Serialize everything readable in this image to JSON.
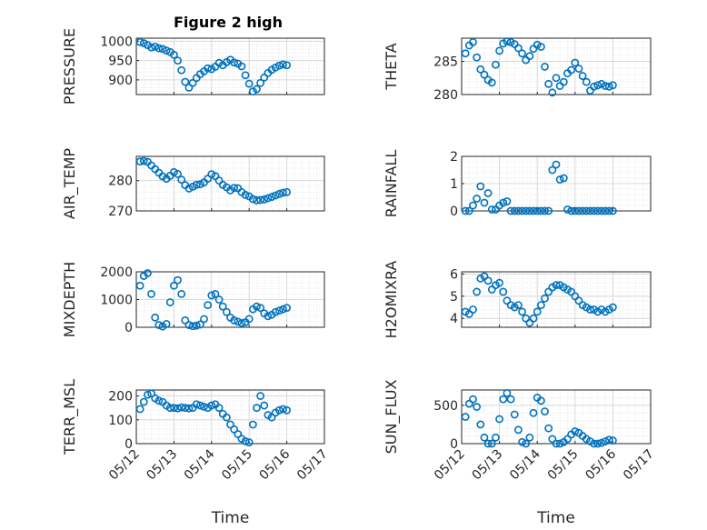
{
  "figure": {
    "title": "Figure 2 high",
    "marker_color": "#0072bd"
  },
  "chart_data": [
    {
      "type": "scatter",
      "ylabel": "PRESSURE",
      "ylim": [
        862,
        1008
      ],
      "yticks": [
        "1000",
        "950",
        "900"
      ],
      "ytick_values": [
        1000,
        950,
        900
      ],
      "x_ticks": [
        "05/12",
        "05/13",
        "05/14",
        "05/15",
        "05/16",
        "05/17"
      ],
      "x_tick_labels_visible": false,
      "grid": true,
      "series": [
        {
          "x": [
            0.1,
            0.2,
            0.3,
            0.4,
            0.5,
            0.6,
            0.7,
            0.8,
            0.9,
            1.0,
            1.1,
            1.2,
            1.3,
            1.4,
            1.5,
            1.6,
            1.7,
            1.8,
            1.9,
            2.0,
            2.1,
            2.2,
            2.3,
            2.4,
            2.5,
            2.6,
            2.7,
            2.8,
            2.9,
            3.0,
            3.1,
            3.2,
            3.3,
            3.4,
            3.5,
            3.6,
            3.7,
            3.8,
            3.9,
            4.0
          ],
          "y": [
            998,
            995,
            990,
            984,
            986,
            982,
            980,
            976,
            972,
            965,
            950,
            925,
            895,
            880,
            892,
            905,
            915,
            922,
            930,
            928,
            934,
            944,
            938,
            946,
            952,
            945,
            942,
            935,
            912,
            890,
            870,
            876,
            892,
            906,
            918,
            926,
            932,
            937,
            940,
            938
          ]
        }
      ]
    },
    {
      "type": "scatter",
      "ylabel": "THETA",
      "ylim": [
        280,
        288.5
      ],
      "yticks": [
        "285",
        "280"
      ],
      "ytick_values": [
        285,
        280
      ],
      "x_ticks": [
        "05/12",
        "05/13",
        "05/14",
        "05/15",
        "05/16",
        "05/17"
      ],
      "x_tick_labels_visible": false,
      "grid": true,
      "series": [
        {
          "x": [
            0.1,
            0.2,
            0.3,
            0.4,
            0.5,
            0.6,
            0.7,
            0.8,
            0.9,
            1.0,
            1.1,
            1.2,
            1.3,
            1.4,
            1.5,
            1.6,
            1.7,
            1.8,
            1.9,
            2.0,
            2.1,
            2.2,
            2.3,
            2.4,
            2.5,
            2.6,
            2.7,
            2.8,
            2.9,
            3.0,
            3.1,
            3.2,
            3.3,
            3.4,
            3.5,
            3.6,
            3.7,
            3.8,
            3.9,
            4.0
          ],
          "y": [
            286.2,
            287.4,
            287.9,
            285.6,
            283.8,
            283.0,
            282.2,
            281.8,
            284.5,
            286.6,
            287.7,
            288.0,
            287.9,
            287.6,
            287.0,
            286.2,
            285.2,
            285.8,
            286.9,
            287.5,
            287.2,
            284.2,
            281.6,
            280.3,
            282.5,
            281.3,
            281.9,
            283.2,
            283.7,
            284.8,
            283.9,
            282.8,
            281.9,
            280.6,
            281.2,
            281.4,
            281.6,
            281.3,
            281.2,
            281.4
          ]
        }
      ]
    },
    {
      "type": "scatter",
      "ylabel": "AIR_TEMP",
      "ylim": [
        270,
        288
      ],
      "yticks": [
        "280",
        "270"
      ],
      "ytick_values": [
        280,
        270
      ],
      "x_ticks": [
        "05/12",
        "05/13",
        "05/14",
        "05/15",
        "05/16",
        "05/17"
      ],
      "x_tick_labels_visible": false,
      "grid": true,
      "series": [
        {
          "x": [
            0.1,
            0.2,
            0.3,
            0.4,
            0.5,
            0.6,
            0.7,
            0.8,
            0.9,
            1.0,
            1.1,
            1.2,
            1.3,
            1.4,
            1.5,
            1.6,
            1.7,
            1.8,
            1.9,
            2.0,
            2.1,
            2.2,
            2.3,
            2.4,
            2.5,
            2.6,
            2.7,
            2.8,
            2.9,
            3.0,
            3.1,
            3.2,
            3.3,
            3.4,
            3.5,
            3.6,
            3.7,
            3.8,
            3.9,
            4.0
          ],
          "y": [
            286.3,
            286.5,
            286.2,
            285.0,
            283.8,
            282.6,
            281.4,
            280.6,
            281.6,
            282.8,
            282.2,
            280.3,
            278.5,
            277.4,
            278.0,
            278.6,
            278.8,
            279.4,
            280.6,
            282.1,
            281.5,
            280.0,
            278.6,
            277.8,
            276.8,
            277.6,
            277.5,
            276.2,
            275.3,
            274.8,
            273.9,
            273.5,
            273.6,
            273.8,
            274.2,
            274.6,
            275.1,
            275.6,
            276.0,
            276.2
          ]
        }
      ]
    },
    {
      "type": "scatter",
      "ylabel": "RAINFALL",
      "ylim": [
        0,
        2
      ],
      "yticks": [
        "2",
        "1",
        "0"
      ],
      "ytick_values": [
        2,
        1,
        0
      ],
      "x_ticks": [
        "05/12",
        "05/13",
        "05/14",
        "05/15",
        "05/16",
        "05/17"
      ],
      "x_tick_labels_visible": false,
      "grid": true,
      "series": [
        {
          "x": [
            0.1,
            0.2,
            0.3,
            0.4,
            0.5,
            0.6,
            0.7,
            0.8,
            0.9,
            1.0,
            1.1,
            1.2,
            1.3,
            1.4,
            1.5,
            1.6,
            1.7,
            1.8,
            1.9,
            2.0,
            2.1,
            2.2,
            2.3,
            2.4,
            2.5,
            2.6,
            2.7,
            2.8,
            2.9,
            3.0,
            3.1,
            3.2,
            3.3,
            3.4,
            3.5,
            3.6,
            3.7,
            3.8,
            3.9,
            4.0
          ],
          "y": [
            0.0,
            0.0,
            0.2,
            0.45,
            0.9,
            0.3,
            0.65,
            0.05,
            0.05,
            0.2,
            0.3,
            0.35,
            0.0,
            0.0,
            0.0,
            0.0,
            0.0,
            0.0,
            0.0,
            0.0,
            0.0,
            0.0,
            0.0,
            1.5,
            1.7,
            1.15,
            1.2,
            0.05,
            0.0,
            0.0,
            0.0,
            0.0,
            0.0,
            0.0,
            0.0,
            0.0,
            0.0,
            0.0,
            0.0,
            0.0
          ]
        }
      ]
    },
    {
      "type": "scatter",
      "ylabel": "MIXDEPTH",
      "ylim": [
        0,
        2000
      ],
      "yticks": [
        "2000",
        "1000",
        "0"
      ],
      "ytick_values": [
        2000,
        1000,
        0
      ],
      "x_ticks": [
        "05/12",
        "05/13",
        "05/14",
        "05/15",
        "05/16",
        "05/17"
      ],
      "x_tick_labels_visible": false,
      "grid": true,
      "series": [
        {
          "x": [
            0.1,
            0.2,
            0.3,
            0.4,
            0.5,
            0.6,
            0.7,
            0.8,
            0.9,
            1.0,
            1.1,
            1.2,
            1.3,
            1.4,
            1.5,
            1.6,
            1.7,
            1.8,
            1.9,
            2.0,
            2.1,
            2.2,
            2.3,
            2.4,
            2.5,
            2.6,
            2.7,
            2.8,
            2.9,
            3.0,
            3.1,
            3.2,
            3.3,
            3.4,
            3.5,
            3.6,
            3.7,
            3.8,
            3.9,
            4.0
          ],
          "y": [
            1500,
            1850,
            1950,
            1200,
            350,
            80,
            30,
            120,
            900,
            1500,
            1700,
            1200,
            250,
            80,
            40,
            60,
            100,
            300,
            800,
            1150,
            1200,
            1000,
            750,
            550,
            350,
            250,
            200,
            150,
            180,
            300,
            650,
            750,
            700,
            500,
            400,
            450,
            550,
            600,
            650,
            700
          ]
        }
      ]
    },
    {
      "type": "scatter",
      "ylabel": "H2OMIXRA",
      "ylim": [
        3.6,
        6.1
      ],
      "yticks": [
        "6",
        "5",
        "4"
      ],
      "ytick_values": [
        6,
        5,
        4
      ],
      "x_ticks": [
        "05/12",
        "05/13",
        "05/14",
        "05/15",
        "05/16",
        "05/17"
      ],
      "x_tick_labels_visible": false,
      "grid": true,
      "series": [
        {
          "x": [
            0.1,
            0.2,
            0.3,
            0.4,
            0.5,
            0.6,
            0.7,
            0.8,
            0.9,
            1.0,
            1.1,
            1.2,
            1.3,
            1.4,
            1.5,
            1.6,
            1.7,
            1.8,
            1.9,
            2.0,
            2.1,
            2.2,
            2.3,
            2.4,
            2.5,
            2.6,
            2.7,
            2.8,
            2.9,
            3.0,
            3.1,
            3.2,
            3.3,
            3.4,
            3.5,
            3.6,
            3.7,
            3.8,
            3.9,
            4.0
          ],
          "y": [
            4.3,
            4.2,
            4.4,
            5.2,
            5.8,
            5.9,
            5.7,
            5.3,
            5.5,
            5.6,
            5.2,
            4.8,
            4.6,
            4.5,
            4.6,
            4.3,
            4.0,
            3.8,
            4.0,
            4.3,
            4.6,
            4.9,
            5.2,
            5.4,
            5.5,
            5.5,
            5.4,
            5.3,
            5.2,
            5.0,
            4.8,
            4.6,
            4.5,
            4.4,
            4.4,
            4.3,
            4.4,
            4.3,
            4.4,
            4.5
          ]
        }
      ]
    },
    {
      "type": "scatter",
      "ylabel": "TERR_MSL",
      "ylim": [
        0,
        225
      ],
      "yticks": [
        "200",
        "100",
        "0"
      ],
      "ytick_values": [
        200,
        100,
        0
      ],
      "x_ticks": [
        "05/12",
        "05/13",
        "05/14",
        "05/15",
        "05/16",
        "05/17"
      ],
      "x_tick_labels_visible": true,
      "xlabel": "Time",
      "grid": true,
      "series": [
        {
          "x": [
            0.1,
            0.2,
            0.3,
            0.4,
            0.5,
            0.6,
            0.7,
            0.8,
            0.9,
            1.0,
            1.1,
            1.2,
            1.3,
            1.4,
            1.5,
            1.6,
            1.7,
            1.8,
            1.9,
            2.0,
            2.1,
            2.2,
            2.3,
            2.4,
            2.5,
            2.6,
            2.7,
            2.8,
            2.9,
            3.0,
            3.1,
            3.2,
            3.3,
            3.4,
            3.5,
            3.6,
            3.7,
            3.8,
            3.9,
            4.0
          ],
          "y": [
            145,
            175,
            205,
            210,
            190,
            180,
            175,
            160,
            150,
            150,
            148,
            152,
            150,
            148,
            150,
            165,
            160,
            155,
            150,
            160,
            165,
            150,
            125,
            110,
            80,
            60,
            40,
            20,
            10,
            5,
            80,
            150,
            200,
            160,
            120,
            110,
            130,
            140,
            145,
            140
          ]
        }
      ]
    },
    {
      "type": "scatter",
      "ylabel": "SUN_FLUX",
      "ylim": [
        0,
        700
      ],
      "yticks": [
        "500",
        "0"
      ],
      "ytick_values": [
        500,
        0
      ],
      "x_ticks": [
        "05/12",
        "05/13",
        "05/14",
        "05/15",
        "05/16",
        "05/17"
      ],
      "x_tick_labels_visible": true,
      "xlabel": "Time",
      "grid": true,
      "series": [
        {
          "x": [
            0.1,
            0.2,
            0.3,
            0.4,
            0.5,
            0.6,
            0.7,
            0.8,
            0.9,
            1.0,
            1.1,
            1.2,
            1.3,
            1.4,
            1.5,
            1.6,
            1.7,
            1.8,
            1.9,
            2.0,
            2.1,
            2.2,
            2.3,
            2.4,
            2.5,
            2.6,
            2.7,
            2.8,
            2.9,
            3.0,
            3.1,
            3.2,
            3.3,
            3.4,
            3.5,
            3.6,
            3.7,
            3.8,
            3.9,
            4.0
          ],
          "y": [
            350,
            520,
            580,
            480,
            250,
            80,
            0,
            0,
            80,
            320,
            580,
            660,
            580,
            380,
            180,
            20,
            0,
            80,
            400,
            600,
            560,
            420,
            200,
            60,
            0,
            0,
            20,
            60,
            120,
            160,
            140,
            100,
            60,
            30,
            0,
            0,
            10,
            30,
            50,
            40
          ]
        }
      ]
    }
  ]
}
